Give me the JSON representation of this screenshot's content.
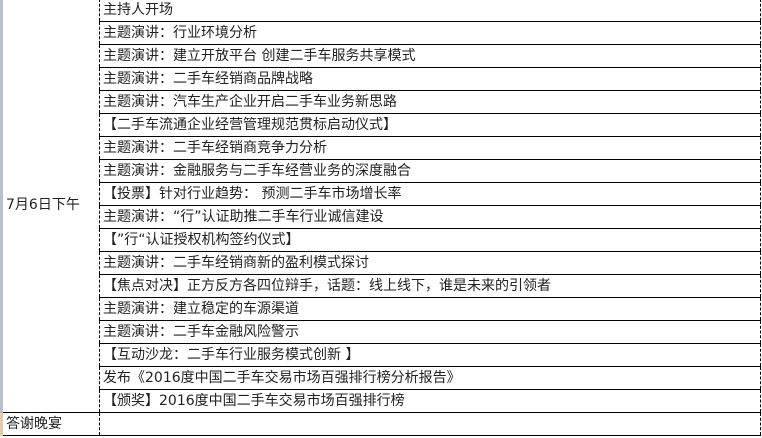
{
  "date_label": "7月6日下午",
  "agenda": [
    "主持人开场",
    "主题演讲：行业环境分析",
    "主题演讲：建立开放平台 创建二手车服务共享模式",
    "主题演讲：二手车经销商品牌战略",
    "主题演讲：汽车生产企业开启二手车业务新思路",
    "【二手车流通企业经营管理规范贯标启动仪式】",
    "主题演讲：二手车经销商竞争力分析",
    "主题演讲：金融服务与二手车经营业务的深度融合",
    "【投票】针对行业趋势： 预测二手车市场增长率",
    "主题演讲：“行”认证助推二手车行业诚信建设",
    "【”行“认证授权机构签约仪式】",
    "主题演讲：二手车经销商新的盈利模式探讨",
    "【焦点对决】正方反方各四位辩手，话题：线上线下，谁是未来的引领者",
    "主题演讲：建立稳定的车源渠道",
    "主题演讲：二手车金融风险警示",
    "【互动沙龙：二手车行业服务模式创新 】",
    "发布《2016度中国二手车交易市场百强排行榜分析报告》",
    "【颁奖】2016度中国二手车交易市场百强排行榜"
  ],
  "last_row": {
    "label": "答谢晚宴",
    "value": ""
  }
}
